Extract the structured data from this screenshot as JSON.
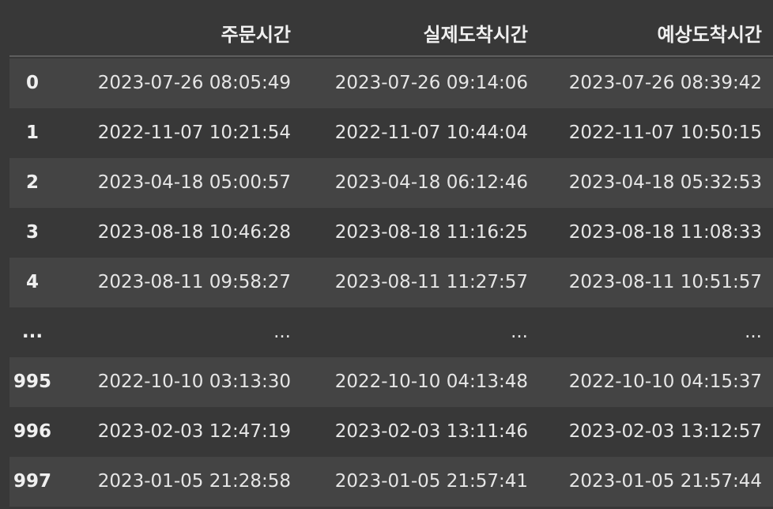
{
  "columns": [
    "주문시간",
    "실제도착시간",
    "예상도착시간"
  ],
  "rows": [
    {
      "index": "0",
      "order_time": "2023-07-26 08:05:49",
      "actual_arrival": "2023-07-26 09:14:06",
      "expected_arrival": "2023-07-26 08:39:42"
    },
    {
      "index": "1",
      "order_time": "2022-11-07 10:21:54",
      "actual_arrival": "2022-11-07 10:44:04",
      "expected_arrival": "2022-11-07 10:50:15"
    },
    {
      "index": "2",
      "order_time": "2023-04-18 05:00:57",
      "actual_arrival": "2023-04-18 06:12:46",
      "expected_arrival": "2023-04-18 05:32:53"
    },
    {
      "index": "3",
      "order_time": "2023-08-18 10:46:28",
      "actual_arrival": "2023-08-18 11:16:25",
      "expected_arrival": "2023-08-18 11:08:33"
    },
    {
      "index": "4",
      "order_time": "2023-08-11 09:58:27",
      "actual_arrival": "2023-08-11 11:27:57",
      "expected_arrival": "2023-08-11 10:51:57"
    },
    {
      "index": "...",
      "order_time": "...",
      "actual_arrival": "...",
      "expected_arrival": "..."
    },
    {
      "index": "995",
      "order_time": "2022-10-10 03:13:30",
      "actual_arrival": "2022-10-10 04:13:48",
      "expected_arrival": "2022-10-10 04:15:37"
    },
    {
      "index": "996",
      "order_time": "2023-02-03 12:47:19",
      "actual_arrival": "2023-02-03 13:11:46",
      "expected_arrival": "2023-02-03 13:12:57"
    },
    {
      "index": "997",
      "order_time": "2023-01-05 21:28:58",
      "actual_arrival": "2023-01-05 21:57:41",
      "expected_arrival": "2023-01-05 21:57:44"
    }
  ]
}
